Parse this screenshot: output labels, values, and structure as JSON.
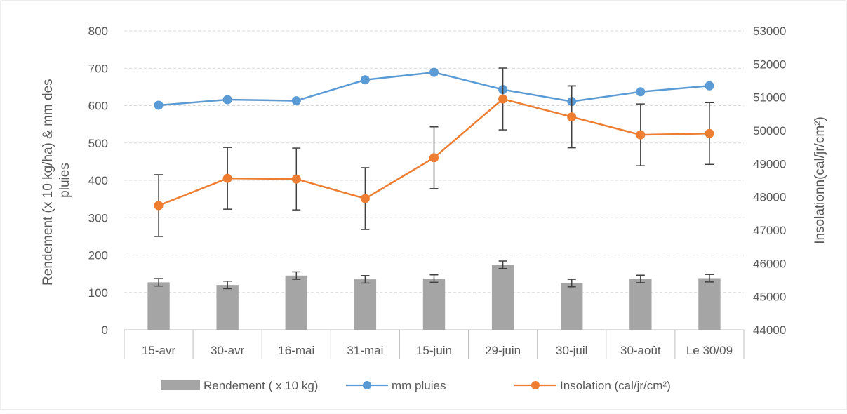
{
  "chart_data": {
    "type": "bar",
    "categories": [
      "15-avr",
      "30-avr",
      "16-mai",
      "31-mai",
      "15-juin",
      "29-juin",
      "30-juil",
      "30-août",
      "Le 30/09"
    ],
    "ylabel_lines": [
      "Rendement (x 10 kg/ha) & mm des",
      "pluies"
    ],
    "y2label": "Insolationn(cal/jr/cm²)",
    "ylim": [
      0,
      800
    ],
    "y2lim": [
      44000,
      53000
    ],
    "yticks": [
      "0",
      "100",
      "200",
      "300",
      "400",
      "500",
      "600",
      "700",
      "800"
    ],
    "y2ticks": [
      "44000",
      "45000",
      "46000",
      "47000",
      "48000",
      "49000",
      "50000",
      "51000",
      "52000",
      "53000"
    ],
    "grid": true,
    "legend_position": "bottom",
    "series": [
      {
        "name": "Rendement ( x 10 kg)",
        "type": "bar",
        "axis": "left",
        "color": "#a5a5a5",
        "values": [
          127,
          120,
          145,
          135,
          137,
          174,
          125,
          136,
          138
        ],
        "errors": [
          10,
          10,
          10,
          10,
          10,
          10,
          10,
          10,
          10
        ]
      },
      {
        "name": "mm pluies",
        "type": "line",
        "axis": "left",
        "color": "#5b9bd5",
        "values": [
          601,
          616,
          613,
          669,
          689,
          643,
          611,
          637,
          653
        ],
        "errors": [
          0,
          0,
          0,
          0,
          0,
          0,
          42,
          0,
          0
        ]
      },
      {
        "name": "Insolation (cal/jr/cm²)",
        "type": "line",
        "axis": "right",
        "color": "#ed7d31",
        "values": [
          47740,
          48560,
          48540,
          47950,
          49180,
          50950,
          50410,
          49870,
          49910
        ],
        "errors": [
          930,
          930,
          930,
          930,
          930,
          930,
          930,
          930,
          930
        ]
      }
    ]
  }
}
